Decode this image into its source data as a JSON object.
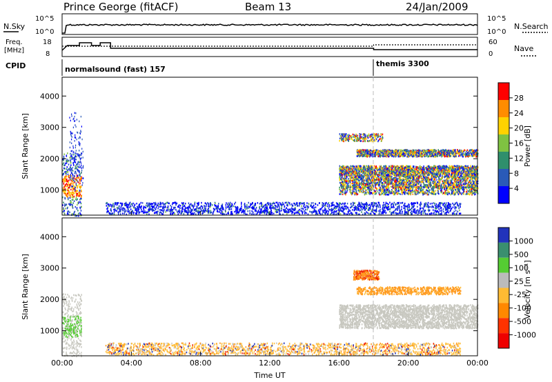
{
  "header": {
    "station": "Prince George (fitACF)",
    "beam": "Beam 13",
    "date": "24/Jan/2009"
  },
  "top_panels": {
    "nsky_label": "N.Sky",
    "nsky_ticks": [
      "10^5",
      "10^0"
    ],
    "nsearch_label": "N.Search",
    "nsearch_ticks": [
      "10^5",
      "10^0"
    ],
    "freq_label_1": "Freq.",
    "freq_label_2": "[MHz]",
    "freq_ticks": [
      "18",
      "8"
    ],
    "nave_label": "Nave",
    "nave_ticks": [
      "60",
      "0"
    ],
    "cpid_label": "CPID",
    "cpid_segments": [
      {
        "name": "normalsound (fast) 157",
        "start_hour": 0
      },
      {
        "name": "themis 3300",
        "start_hour": 18
      }
    ]
  },
  "chart_data": [
    {
      "type": "heatmap",
      "ylabel": "Slant Range [km]",
      "x_ticks": [
        "00:00",
        "04:00",
        "08:00",
        "12:00",
        "16:00",
        "20:00",
        "00:00"
      ],
      "y_ticks": [
        "1000",
        "2000",
        "3000",
        "4000"
      ],
      "xlim": [
        0,
        24
      ],
      "ylim": [
        200,
        4600
      ],
      "colorbar_label": "Power [dB]",
      "colorbar_ticks": [
        "4",
        "8",
        "12",
        "16",
        "20",
        "24",
        "28"
      ],
      "colorbar_colors": [
        "#0000ff",
        "#2a5ab8",
        "#2f8f6c",
        "#7fc242",
        "#ffd200",
        "#ff8c00",
        "#ff0000"
      ]
    },
    {
      "type": "heatmap",
      "ylabel": "Slant Range [km]",
      "xlabel": "Time UT",
      "x_ticks": [
        "00:00",
        "04:00",
        "08:00",
        "12:00",
        "16:00",
        "20:00",
        "00:00"
      ],
      "y_ticks": [
        "1000",
        "2000",
        "3000",
        "4000"
      ],
      "xlim": [
        0,
        24
      ],
      "ylim": [
        200,
        4600
      ],
      "colorbar_label": "Velocity [m s⁻¹]",
      "colorbar_ticks": [
        "1000",
        "500",
        "100",
        "25",
        "-25",
        "-100",
        "-500",
        "-1000"
      ],
      "colorbar_colors": [
        "#2233bb",
        "#3a8f6f",
        "#55cc33",
        "#bbbbbb",
        "#ffbb33",
        "#ff8800",
        "#ff3300",
        "#ee0000"
      ]
    }
  ]
}
